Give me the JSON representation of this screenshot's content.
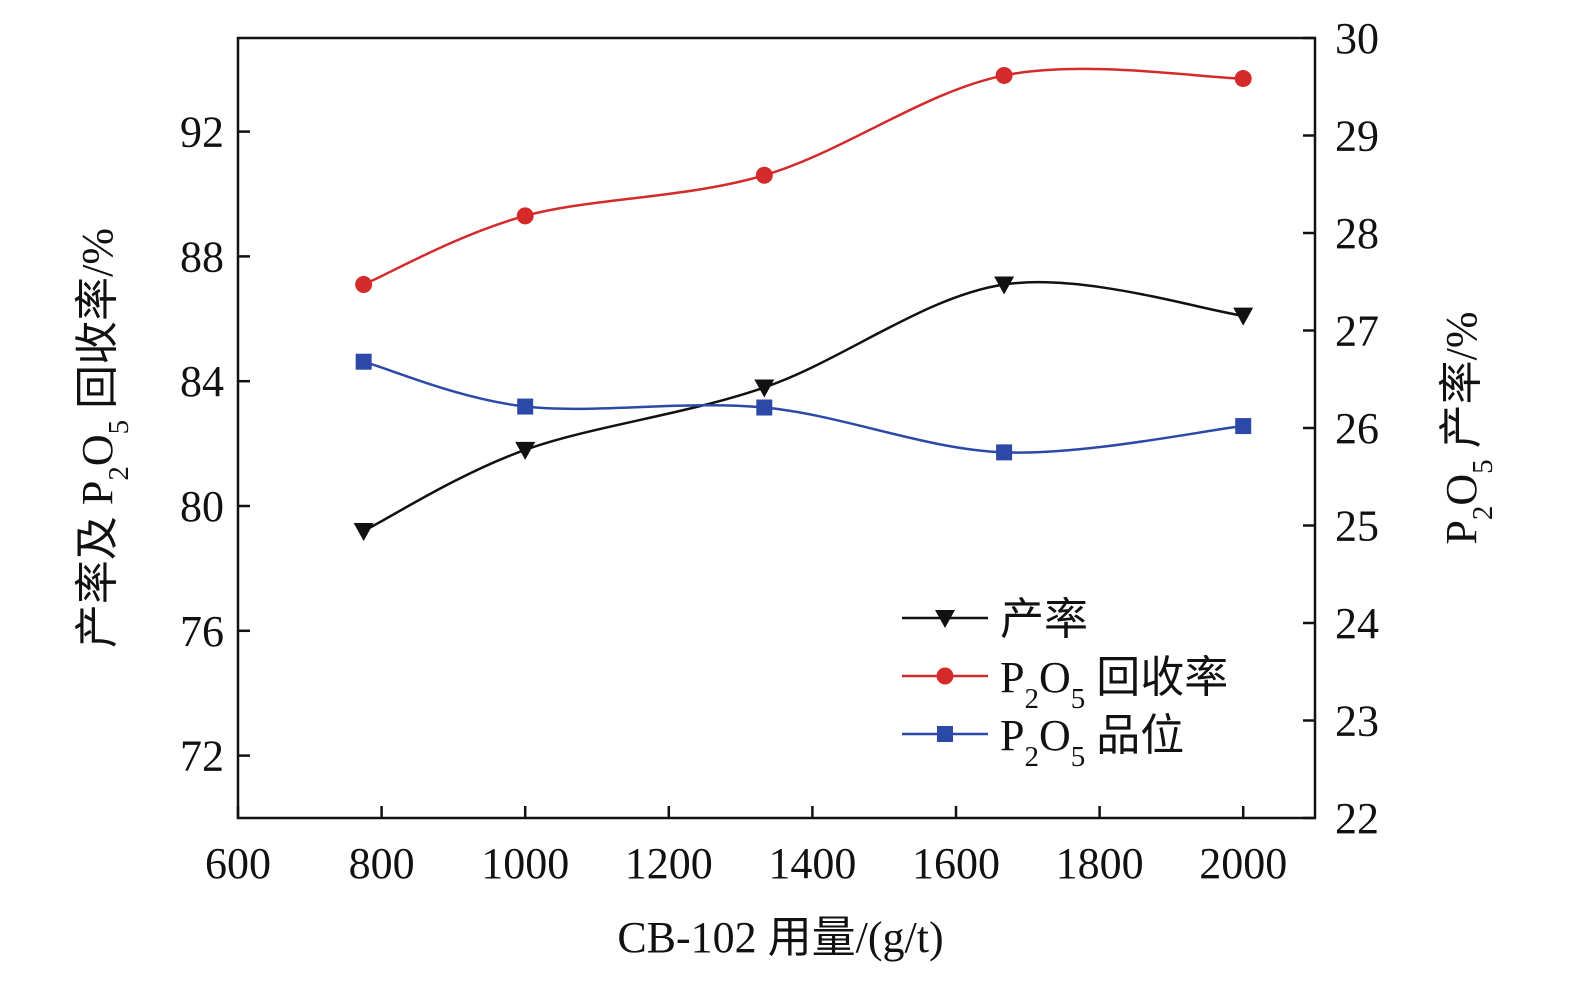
{
  "chart_data": {
    "type": "line",
    "x_axis": {
      "label": "CB-102 用量/(g/t)",
      "range": [
        600,
        2100
      ],
      "ticks": [
        600,
        800,
        1000,
        1200,
        1400,
        1600,
        1800,
        2000
      ]
    },
    "y_left": {
      "label_parts": [
        "产率及 P",
        "2",
        "O",
        "5",
        " 回收率/%"
      ],
      "range": [
        70,
        95
      ],
      "ticks": [
        72,
        76,
        80,
        84,
        88,
        92
      ]
    },
    "y_right": {
      "label_parts": [
        "P",
        "2",
        "O",
        "5",
        " 产率/%"
      ],
      "range": [
        22,
        30
      ],
      "ticks": [
        22,
        23,
        24,
        25,
        26,
        27,
        28,
        29,
        30
      ]
    },
    "x": [
      775,
      1000,
      1333,
      1667,
      2000
    ],
    "series": [
      {
        "name": "产率",
        "axis": "left",
        "marker": "triangle-down",
        "color": "#111111",
        "values": [
          79.2,
          81.8,
          83.8,
          87.1,
          86.1
        ]
      },
      {
        "name_parts": [
          "P",
          "2",
          "O",
          "5",
          " 回收率"
        ],
        "axis": "left",
        "marker": "circle",
        "color": "#d42a2a",
        "values": [
          87.1,
          89.3,
          90.6,
          93.8,
          93.7
        ]
      },
      {
        "name_parts": [
          "P",
          "2",
          "O",
          "5",
          " 品位"
        ],
        "axis": "right",
        "marker": "square",
        "color": "#2c49a8",
        "values": [
          26.68,
          26.22,
          26.21,
          25.75,
          26.02
        ]
      }
    ],
    "legend": "bottom-right",
    "grid": false
  }
}
